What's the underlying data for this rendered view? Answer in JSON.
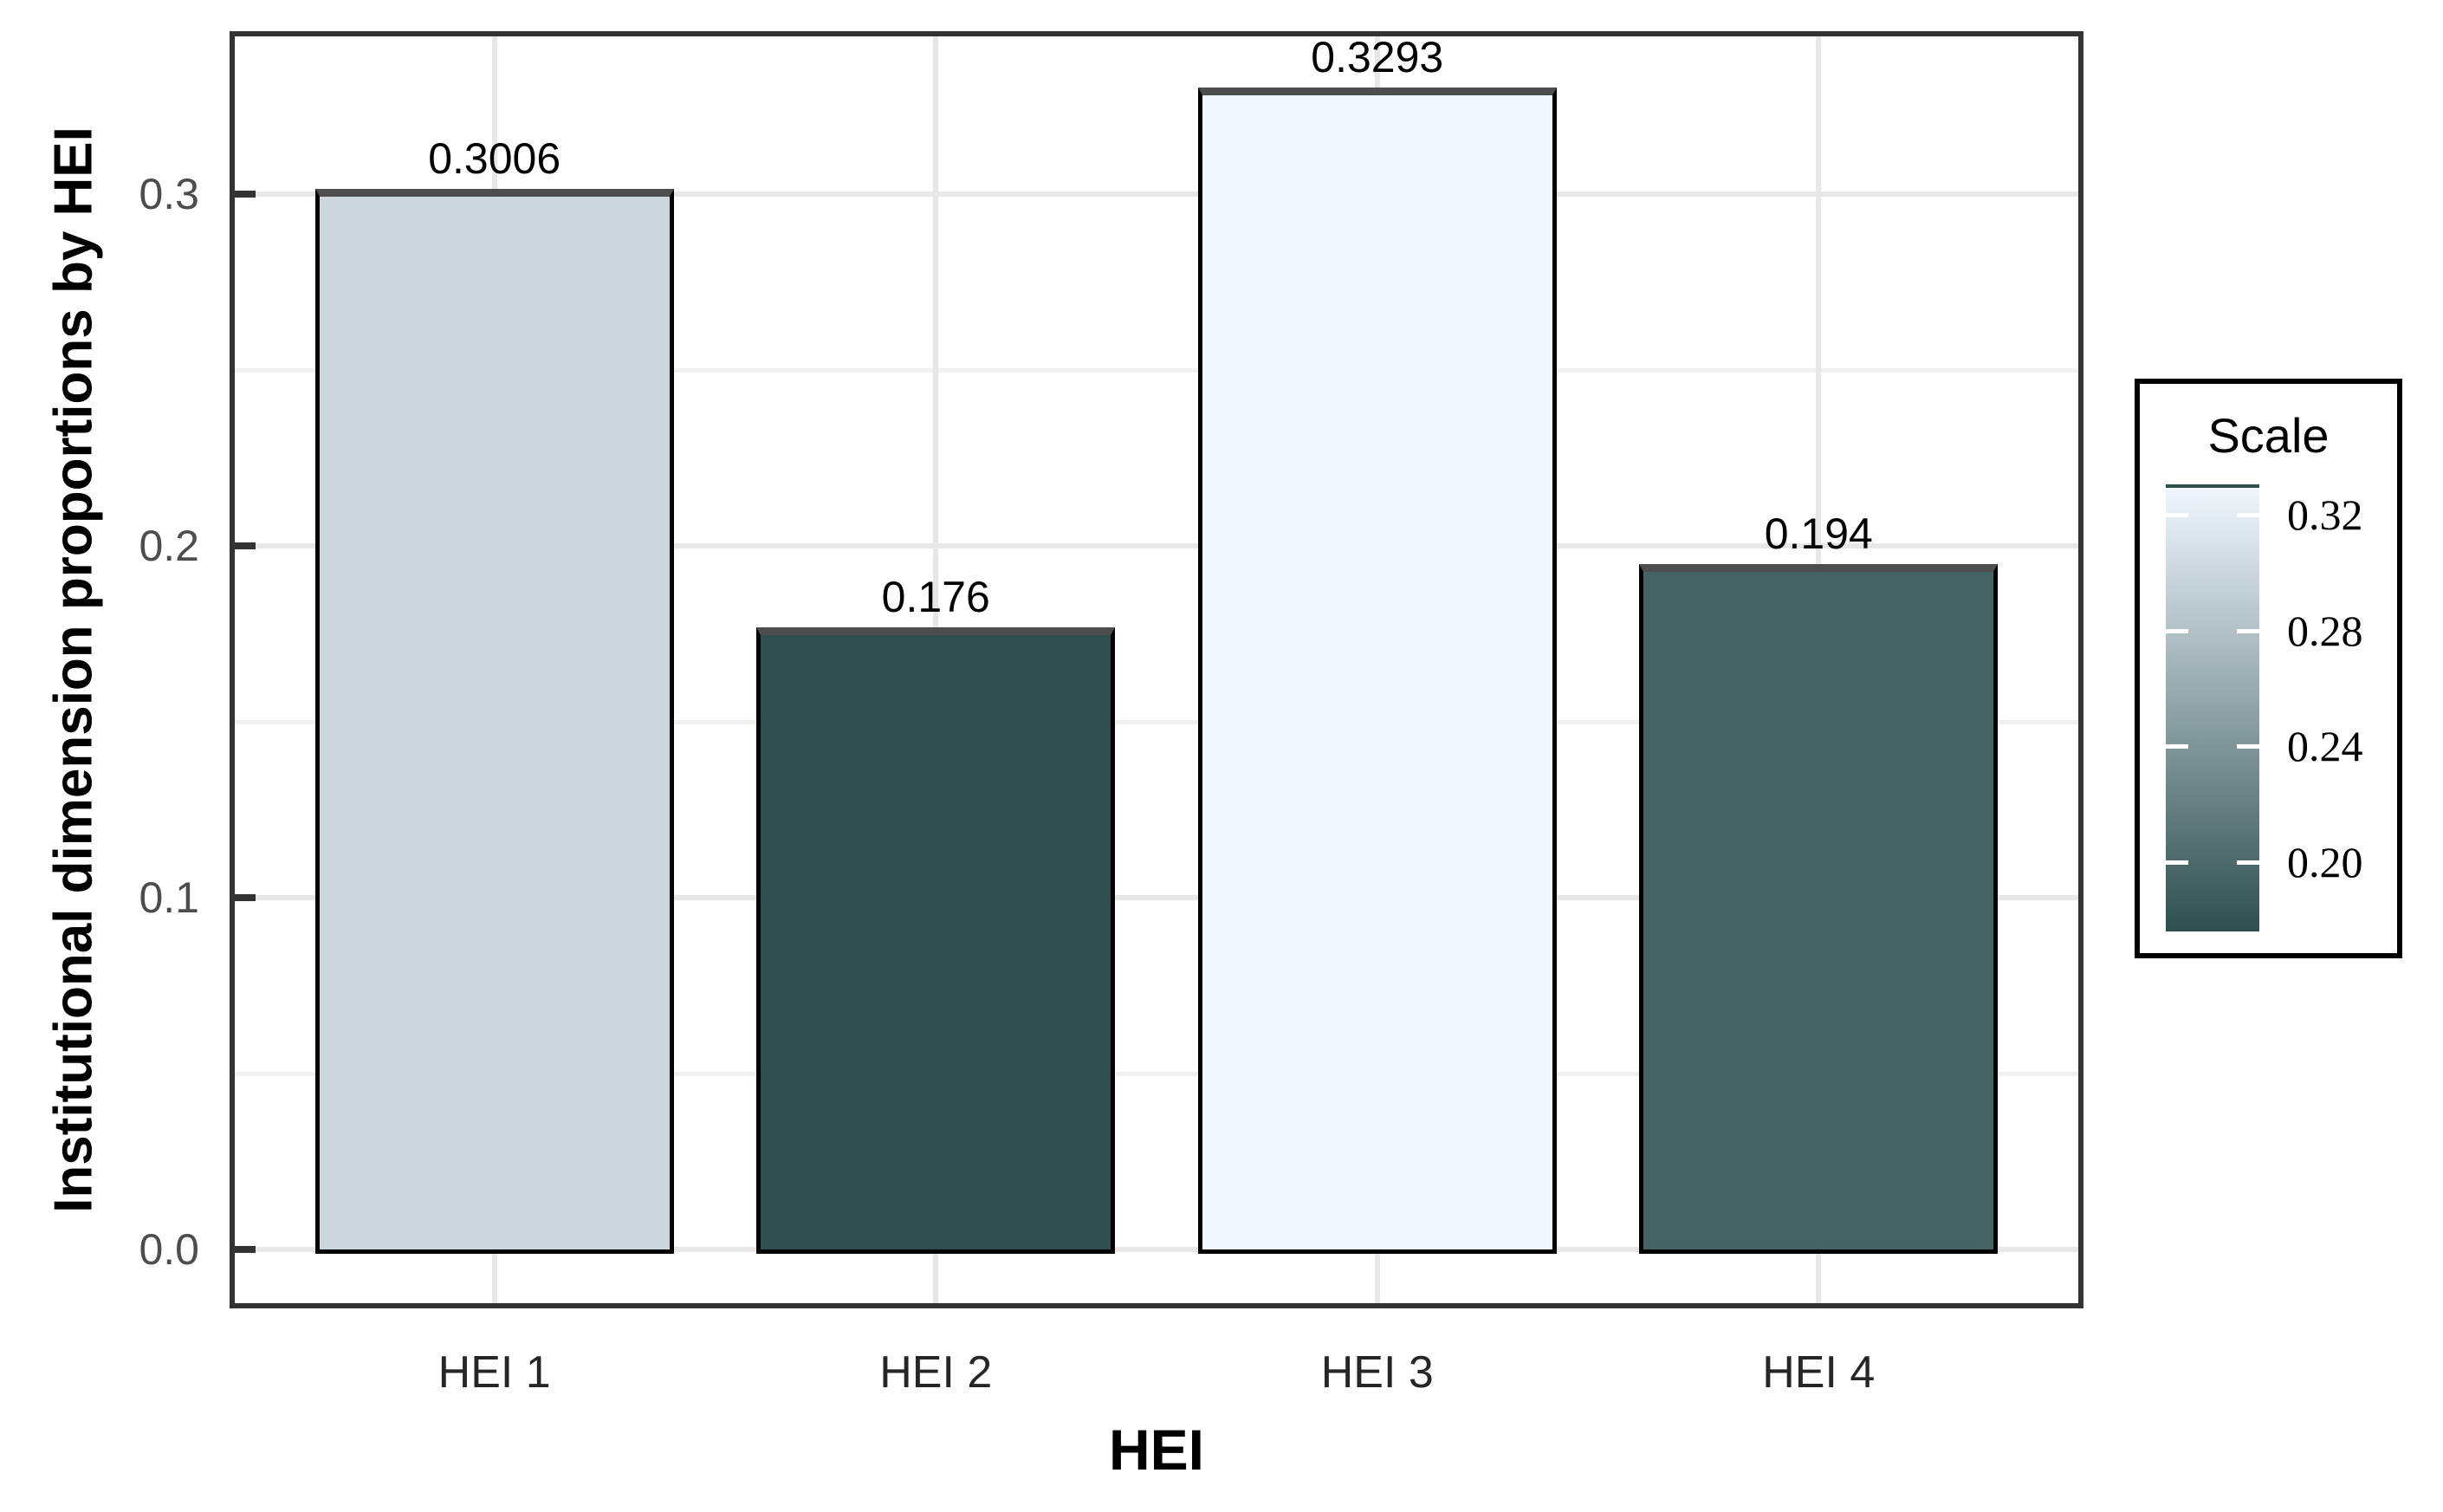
{
  "chart_data": {
    "type": "bar",
    "title": "",
    "xlabel": "HEI",
    "ylabel": "Institutional dimension proportions by HEI",
    "categories": [
      "HEI 1",
      "HEI 2",
      "HEI 3",
      "HEI 4"
    ],
    "values": [
      0.3006,
      0.176,
      0.3293,
      0.194
    ],
    "bar_labels": [
      "0.3006",
      "0.176",
      "0.3293",
      "0.194"
    ],
    "bar_colors": [
      "#cbd7dd",
      "#2f4f4f",
      "#f0f7fe",
      "#446463"
    ],
    "ylim": [
      -0.0165,
      0.3463
    ],
    "y_major_ticks": [
      {
        "value": 0.0,
        "label": "0.0"
      },
      {
        "value": 0.1,
        "label": "0.1"
      },
      {
        "value": 0.2,
        "label": "0.2"
      },
      {
        "value": 0.3,
        "label": "0.3"
      }
    ],
    "y_minor_ticks": [
      0.05,
      0.15,
      0.25
    ],
    "grid": true,
    "legend": {
      "title": "Scale",
      "position": "right",
      "gradient_high_color": "#f0f7fe",
      "gradient_low_color": "#2f4f4f",
      "domain_max": 0.3293,
      "domain_min": 0.176,
      "ticks": [
        {
          "value": 0.32,
          "label": "0.32"
        },
        {
          "value": 0.28,
          "label": "0.28"
        },
        {
          "value": 0.24,
          "label": "0.24"
        },
        {
          "value": 0.2,
          "label": "0.20"
        }
      ]
    },
    "styles": {
      "panel_border_color": "#333333",
      "major_grid_color": "#e7e7e7",
      "minor_grid_color": "#f0f0f0",
      "axis_tick_color": "#333333",
      "y_tick_label_color": "#4d4d4d",
      "x_tick_label_color": "#262626",
      "bar_outline_color": "#000000",
      "bar_top_edge_color": "#4d4d4d",
      "legend_tick_color": "#ffffff",
      "gradient_top_edge_color": "#30504e"
    }
  }
}
